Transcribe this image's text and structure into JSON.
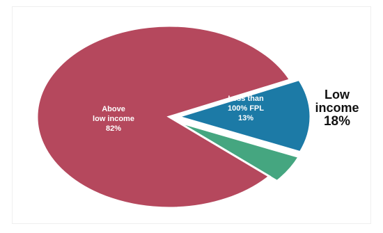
{
  "chart_data": {
    "type": "pie",
    "slices": [
      {
        "label_lines": [
          "Above",
          "low income",
          "82%"
        ],
        "value": 82,
        "color": "#b5485d"
      },
      {
        "label_lines": [
          "Less than",
          "100% FPL",
          "13%"
        ],
        "value": 13,
        "color": "#1c7aa6"
      },
      {
        "label_lines": [],
        "value": 5,
        "color": "#45a680"
      }
    ],
    "callout": {
      "lines": [
        "Low",
        "income",
        "18%"
      ]
    }
  }
}
